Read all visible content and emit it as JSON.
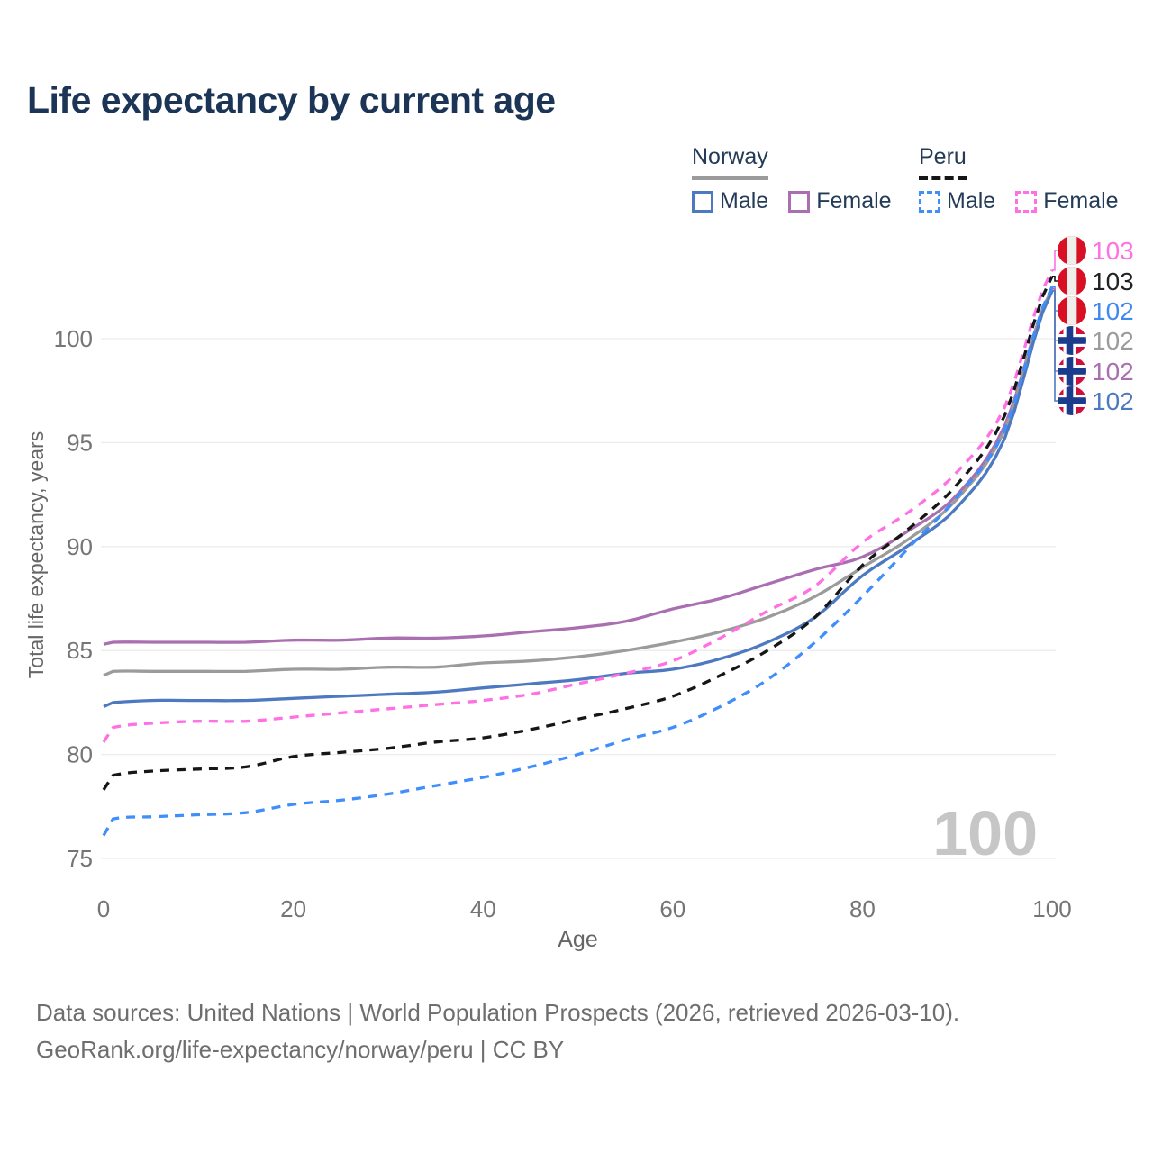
{
  "title": "Life expectancy by current age",
  "legend": {
    "groups": [
      {
        "country": "Norway",
        "line_style": "solid",
        "line_color": "#9b9b9b",
        "items": [
          {
            "label": "Male",
            "color": "#4d79c1",
            "dashed": false
          },
          {
            "label": "Female",
            "color": "#a96fb0",
            "dashed": false
          }
        ]
      },
      {
        "country": "Peru",
        "line_style": "dashed",
        "line_color": "#161616",
        "items": [
          {
            "label": "Male",
            "color": "#3f8efc",
            "dashed": true
          },
          {
            "label": "Female",
            "color": "#ff70e4",
            "dashed": true
          }
        ]
      }
    ]
  },
  "chart_data": {
    "type": "line",
    "title": "Life expectancy by current age",
    "xlabel": "Age",
    "ylabel": "Total life expectancy, years",
    "x_ticks": [
      0,
      20,
      40,
      60,
      80,
      100
    ],
    "y_ticks": [
      75,
      80,
      85,
      90,
      95,
      100
    ],
    "x_range": [
      0,
      100
    ],
    "y_range": [
      75,
      103.8
    ],
    "grid": "horizontal",
    "watermark": "100",
    "x": [
      0,
      1,
      5,
      10,
      15,
      20,
      25,
      30,
      35,
      40,
      45,
      50,
      55,
      60,
      65,
      70,
      75,
      80,
      85,
      90,
      95,
      100
    ],
    "series": [
      {
        "id": "norway-female",
        "country": "Norway",
        "sex": "Female",
        "color": "#a96fb0",
        "dashed": false,
        "values": [
          85.3,
          85.4,
          85.4,
          85.4,
          85.4,
          85.5,
          85.5,
          85.6,
          85.6,
          85.7,
          85.9,
          86.1,
          86.4,
          87.0,
          87.5,
          88.2,
          88.9,
          89.5,
          90.8,
          92.5,
          95.8,
          102.4
        ]
      },
      {
        "id": "norway-total",
        "country": "Norway",
        "sex": "Both",
        "color": "#9b9b9b",
        "dashed": false,
        "values": [
          83.8,
          84.0,
          84.0,
          84.0,
          84.0,
          84.1,
          84.1,
          84.2,
          84.2,
          84.4,
          84.5,
          84.7,
          85.0,
          85.4,
          85.9,
          86.6,
          87.6,
          89.0,
          90.4,
          92.3,
          95.6,
          102.4
        ]
      },
      {
        "id": "norway-male",
        "country": "Norway",
        "sex": "Male",
        "color": "#4d79c1",
        "dashed": false,
        "values": [
          82.3,
          82.5,
          82.6,
          82.6,
          82.6,
          82.7,
          82.8,
          82.9,
          83.0,
          83.2,
          83.4,
          83.6,
          83.9,
          84.1,
          84.6,
          85.4,
          86.6,
          88.6,
          90.1,
          91.9,
          95.2,
          102.3
        ]
      },
      {
        "id": "peru-female",
        "country": "Peru",
        "sex": "Female",
        "color": "#ff70e4",
        "dashed": true,
        "values": [
          80.6,
          81.3,
          81.5,
          81.6,
          81.6,
          81.8,
          82.0,
          82.2,
          82.4,
          82.6,
          82.9,
          83.4,
          83.9,
          84.5,
          85.6,
          86.9,
          88.1,
          90.2,
          91.7,
          93.6,
          96.7,
          103.3
        ]
      },
      {
        "id": "peru-total",
        "country": "Peru",
        "sex": "Both",
        "color": "#161616",
        "dashed": true,
        "values": [
          78.3,
          79.0,
          79.2,
          79.3,
          79.4,
          79.9,
          80.1,
          80.3,
          80.6,
          80.8,
          81.2,
          81.7,
          82.2,
          82.8,
          83.8,
          85.0,
          86.6,
          89.1,
          90.9,
          93.0,
          96.3,
          103.0
        ]
      },
      {
        "id": "peru-male",
        "country": "Peru",
        "sex": "Male",
        "color": "#3f8efc",
        "dashed": true,
        "values": [
          76.1,
          76.9,
          77.0,
          77.1,
          77.2,
          77.6,
          77.8,
          78.1,
          78.5,
          78.9,
          79.4,
          80.0,
          80.7,
          81.3,
          82.3,
          83.6,
          85.4,
          87.6,
          90.0,
          92.4,
          95.6,
          102.5
        ]
      }
    ],
    "end_labels": [
      {
        "value": "103",
        "series": "peru-female",
        "flag": "peru",
        "color": "#ff70e4"
      },
      {
        "value": "103",
        "series": "peru-total",
        "flag": "peru",
        "color": "#222222"
      },
      {
        "value": "102",
        "series": "peru-male",
        "flag": "peru",
        "color": "#4189f0"
      },
      {
        "value": "102",
        "series": "norway-total",
        "flag": "norway",
        "color": "#9b9b9b"
      },
      {
        "value": "102",
        "series": "norway-female",
        "flag": "norway",
        "color": "#a96fb0"
      },
      {
        "value": "102",
        "series": "norway-male",
        "flag": "norway",
        "color": "#4d79c1"
      }
    ]
  },
  "footer": {
    "line1": "Data sources: United Nations | World Population Prospects (2026, retrieved 2026-03-10).",
    "line2": "GeoRank.org/life-expectancy/norway/peru | CC BY"
  }
}
